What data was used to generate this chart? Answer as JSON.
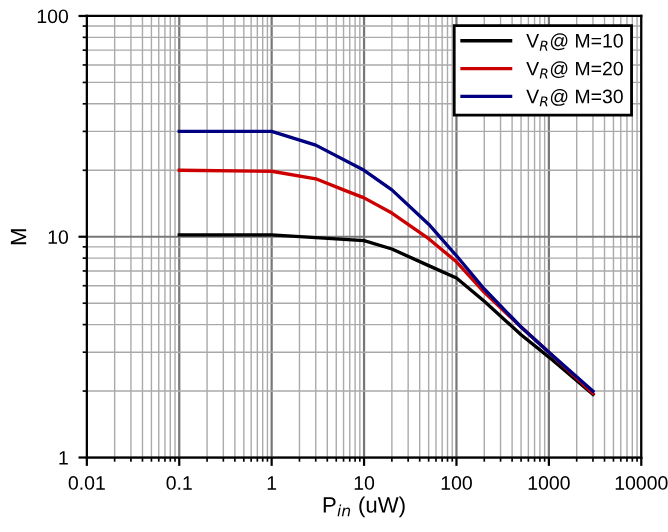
{
  "chart_data": {
    "type": "line",
    "xlabel": "P$_{in}$ (uW)",
    "ylabel": "M",
    "log": "xy",
    "grid": true,
    "legend": "top right",
    "marker": "none",
    "line_style": "solid",
    "xlim": [
      0.01,
      10000
    ],
    "ylim": [
      1,
      100
    ],
    "xticks": [
      0.01,
      0.1,
      1,
      10,
      100,
      1000,
      10000
    ],
    "yticks": [
      1,
      10,
      100
    ],
    "series": [
      {
        "name": "V$_{R}$@ M=10",
        "color": "#000000",
        "x": [
          0.1,
          1,
          10,
          20,
          50,
          100,
          200,
          500,
          1000,
          3000
        ],
        "values": [
          10.2,
          10.2,
          9.6,
          8.8,
          7.4,
          6.5,
          5.1,
          3.6,
          2.85,
          1.93
        ]
      },
      {
        "name": "V$_{R}$@ M=20",
        "color": "#cc0000",
        "x": [
          0.1,
          1,
          3,
          6,
          10,
          20,
          50,
          100,
          200,
          500,
          1000,
          3000
        ],
        "values": [
          20,
          19.8,
          18.3,
          16.3,
          15,
          12.8,
          9.8,
          7.7,
          5.6,
          3.9,
          3,
          1.95
        ]
      },
      {
        "name": "V$_{R}$@ M=30",
        "color": "#000080",
        "x": [
          0.1,
          1,
          3,
          10,
          20,
          50,
          100,
          200,
          500,
          1000,
          3000
        ],
        "values": [
          30,
          30,
          26,
          20,
          16.3,
          11.4,
          8.2,
          5.8,
          3.9,
          3,
          2
        ]
      }
    ]
  }
}
